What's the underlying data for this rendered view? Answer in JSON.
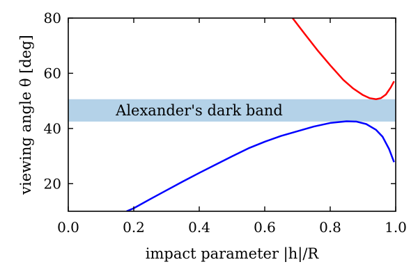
{
  "chart_data": {
    "type": "line",
    "xlabel": "impact parameter |h|/R",
    "ylabel": "viewing angle θ [deg]",
    "xlim": [
      0.0,
      1.0
    ],
    "ylim": [
      10,
      80
    ],
    "x_ticks": [
      "0.0",
      "0.2",
      "0.4",
      "0.6",
      "0.8",
      "1.0"
    ],
    "y_ticks": [
      "20",
      "40",
      "60",
      "80"
    ],
    "band": {
      "label": "Alexander's dark band",
      "y_range": [
        42.5,
        50.6
      ],
      "color": "#b4d2e8"
    },
    "series": [
      {
        "color": "#ff0000",
        "x": [
          0.685,
          0.72,
          0.76,
          0.8,
          0.84,
          0.87,
          0.9,
          0.92,
          0.94,
          0.955,
          0.97,
          0.985,
          0.995
        ],
        "y": [
          80.0,
          74.6,
          68.5,
          62.9,
          57.6,
          54.5,
          52.1,
          51.0,
          50.6,
          51.0,
          52.3,
          54.9,
          57.1
        ]
      },
      {
        "color": "#0000ff",
        "x": [
          0.178,
          0.2,
          0.25,
          0.3,
          0.35,
          0.4,
          0.45,
          0.5,
          0.55,
          0.6,
          0.65,
          0.7,
          0.75,
          0.8,
          0.85,
          0.88,
          0.91,
          0.94,
          0.96,
          0.98,
          0.995
        ],
        "y": [
          10.0,
          11.1,
          14.4,
          17.6,
          20.8,
          23.9,
          26.9,
          29.9,
          32.8,
          35.2,
          37.3,
          39.0,
          40.7,
          42.0,
          42.6,
          42.5,
          41.6,
          39.5,
          37.0,
          32.5,
          27.8
        ]
      }
    ],
    "grid": false
  }
}
